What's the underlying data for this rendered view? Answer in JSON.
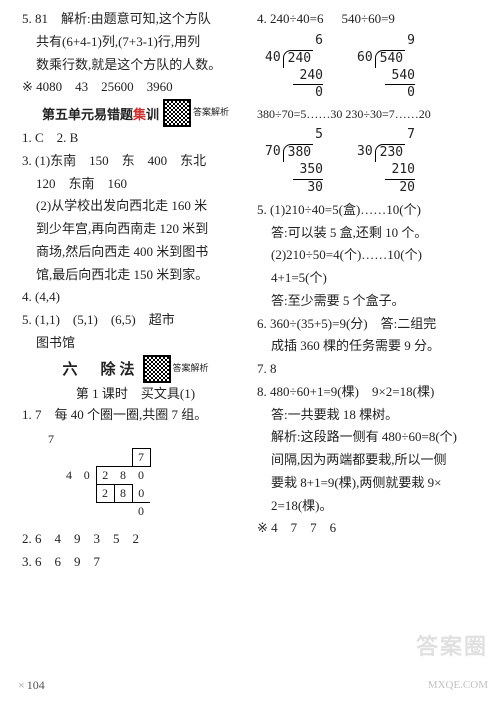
{
  "left": {
    "l1": "5. 81　解析:由题意可知,这个方队",
    "l2": "共有(6+4-1)列,(7+3-1)行,用列",
    "l3": "数乘行数,就是这个方队的人数。",
    "l4": "※ 4080　43　25600　3960",
    "unit5_title_a": "第五单元易错题",
    "unit5_title_b": "集",
    "unit5_title_c": "训",
    "qr_label": "答案解析",
    "l6": "1. C　2. B",
    "l7": "3. (1)东南　150　东　400　东北",
    "l8": "120　东南　160",
    "l9": "(2)从学校出发向西北走 160 米",
    "l10": "到少年宫,再向西南走 120 米到",
    "l11": "商场,然后向西走 400 米到图书",
    "l12": "馆,最后向西北走 150 米到家。",
    "l13": "4. (4,4)",
    "l14": "5. (1,1)　(5,1)　(6,5)　超市",
    "l15": "图书馆",
    "sec6": "六　除法",
    "sec6_sub": "第 1 课时　买文具(1)",
    "l16": "1. 7　每 40 个圈一圈,共圈 7 组。",
    "l17": "2. 6　4　9　3　5　2",
    "l18": "3. 6　6　9　7",
    "ld1": {
      "divisor": "40",
      "dividend": "280",
      "quotient": "7",
      "rows": [
        "280",
        "0"
      ]
    }
  },
  "right": {
    "r1a": "4. 240÷40=6",
    "r1b": "540÷60=9",
    "ld_a": {
      "divisor": "40",
      "dividend": "240",
      "quotient": "6",
      "rows": [
        "240",
        "0"
      ]
    },
    "ld_b": {
      "divisor": "60",
      "dividend": "540",
      "quotient": "9",
      "rows": [
        "540",
        "0"
      ]
    },
    "r2": "380÷70=5……30 230÷30=7……20",
    "ld_c": {
      "divisor": "70",
      "dividend": "380",
      "quotient": "5",
      "rows": [
        "350",
        "30"
      ]
    },
    "ld_d": {
      "divisor": "30",
      "dividend": "230",
      "quotient": "7",
      "rows": [
        "210",
        "20"
      ]
    },
    "r3": "5. (1)210÷40=5(盒)……10(个)",
    "r4": "答:可以装 5 盒,还剩 10 个。",
    "r5": "(2)210÷50=4(个)……10(个)",
    "r6": "4+1=5(个)",
    "r7": "答:至少需要 5 个盒子。",
    "r8": "6. 360÷(35+5)=9(分)　答:二组完",
    "r9": "成插 360 棵的任务需要 9 分。",
    "r10": "7. 8",
    "r11": "8. 480÷60+1=9(棵)　9×2=18(棵)",
    "r12": "答:一共要栽 18 棵树。",
    "r13": "解析:这段路一侧有 480÷60=8(个)",
    "r14": "间隔,因为两端都要栽,所以一侧",
    "r15": "要栽 8+1=9(棵),两侧就要栽 9×",
    "r16": "2=18(棵)。",
    "r17": "※ 4　7　7　6"
  },
  "pagenum": "104",
  "wm1": "答案圈",
  "wm2": "MXQE.COM"
}
